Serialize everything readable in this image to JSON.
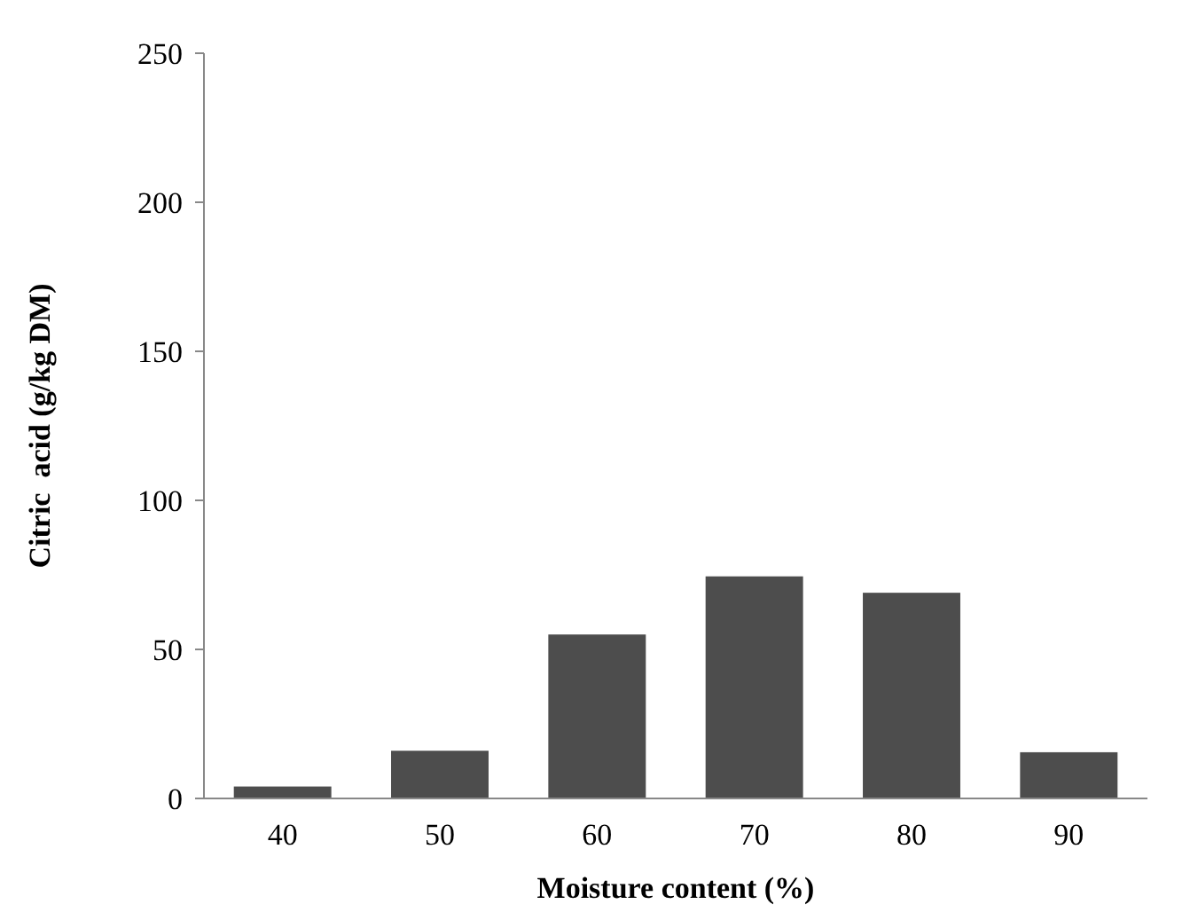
{
  "chart_data": {
    "type": "bar",
    "xlabel": "Moisture content (%)",
    "ylabel": "Citric  acid (g/kg DM)",
    "categories": [
      "40",
      "50",
      "60",
      "70",
      "80",
      "90"
    ],
    "values": [
      4,
      16,
      55,
      74.5,
      69,
      15.5
    ],
    "color": "#4d4d4d",
    "ylim": [
      0,
      250
    ],
    "yticks": [
      0,
      50,
      100,
      150,
      200,
      250
    ],
    "grid": false
  }
}
